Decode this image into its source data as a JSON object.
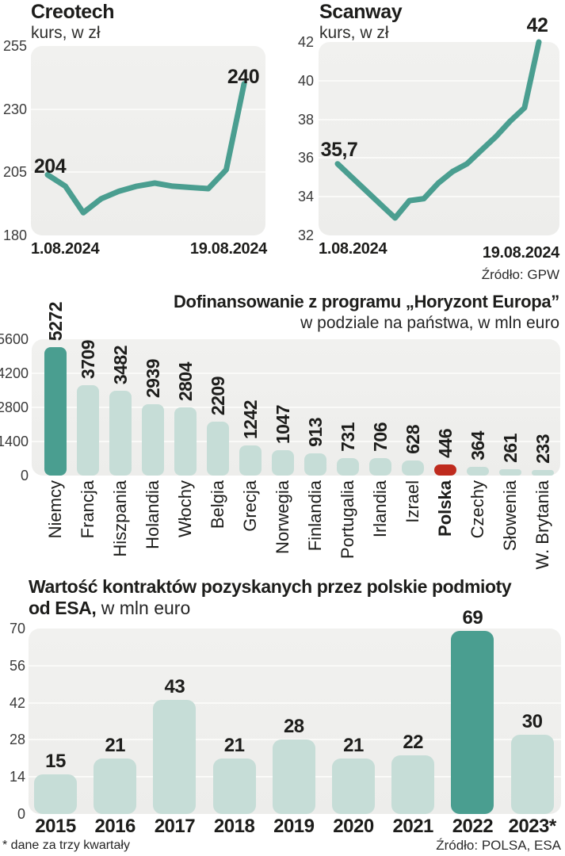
{
  "page": {
    "background": "#ffffff"
  },
  "colors": {
    "teal_dark": "#4a9e90",
    "teal_light": "#c6ddd7",
    "red": "#bf2b1e",
    "plot_bg_top": "#f1f1ef",
    "plot_bg_bottom": "#ededeb",
    "grid": "#fafaf8",
    "text_dark": "#1d1d1b",
    "tick_text": "#3a3a3a"
  },
  "sources": {
    "gpw": "Źródło: GPW",
    "polsa_esa": "Źródło: POLSA, ESA"
  },
  "footnote": "* dane za trzy kwartały",
  "chart_data": [
    {
      "id": "creotech",
      "type": "line",
      "title": "Creotech",
      "subtitle": "kurs, w zł",
      "ylim": [
        180,
        255
      ],
      "y_ticks": [
        255,
        230,
        205,
        180
      ],
      "gridlines": [
        230,
        205
      ],
      "x_tick_labels": [
        "1.08.2024",
        "19.08.2024"
      ],
      "values": [
        204,
        199.5,
        189,
        194.5,
        197.5,
        199.5,
        200.7,
        199.5,
        199,
        198.5,
        206,
        240
      ],
      "point_labels": [
        {
          "index": 0,
          "text": "204"
        },
        {
          "index": 11,
          "text": "240"
        }
      ],
      "line_color_key": "teal_dark"
    },
    {
      "id": "scanway",
      "type": "line",
      "title": "Scanway",
      "subtitle": "kurs, w zł",
      "ylim": [
        32,
        42
      ],
      "y_ticks": [
        42,
        40,
        38,
        36,
        34,
        32
      ],
      "gridlines": [
        40,
        38,
        36,
        34
      ],
      "x_tick_labels": [
        "1.08.2024",
        "19.08.2024"
      ],
      "values": [
        35.7,
        35.0,
        34.3,
        33.6,
        32.9,
        33.8,
        33.9,
        34.7,
        35.3,
        35.7,
        36.4,
        37.1,
        37.9,
        38.6,
        42
      ],
      "point_labels": [
        {
          "index": 0,
          "text": "35,7"
        },
        {
          "index": 14,
          "text": "42"
        }
      ],
      "line_color_key": "teal_dark"
    },
    {
      "id": "horyzont",
      "type": "bar",
      "title": "Dofinansowanie z programu „Horyzont Europa”",
      "subtitle": "w podziale na państwa, w mln euro",
      "ylim": [
        0,
        5600
      ],
      "y_ticks": [
        5600,
        4200,
        2800,
        1400,
        0
      ],
      "gridlines": [
        4200,
        2800,
        1400
      ],
      "categories": [
        "Niemcy",
        "Francja",
        "Hiszpania",
        "Holandia",
        "Włochy",
        "Belgia",
        "Grecja",
        "Norwegia",
        "Finlandia",
        "Portugalia",
        "Irlandia",
        "Izrael",
        "Polska",
        "Czechy",
        "Słowenia",
        "W. Brytania"
      ],
      "values": [
        5272,
        3709,
        3482,
        2939,
        2804,
        2209,
        1242,
        1047,
        913,
        731,
        706,
        628,
        446,
        364,
        261,
        233
      ],
      "rotated_labels": true,
      "bar_color_default": "teal_light",
      "bar_color_overrides": {
        "0": "teal_dark",
        "12": "red"
      },
      "bold_category_indexes": [
        12
      ]
    },
    {
      "id": "esa",
      "type": "bar",
      "title_line1": "Wartość kontraktów pozyskanych przez polskie podmioty",
      "title_line2_bold": "od ESA,",
      "title_line2_regular": " w mln euro",
      "ylim": [
        0,
        70
      ],
      "y_ticks": [
        70,
        56,
        42,
        28,
        14,
        0
      ],
      "gridlines": [
        56,
        42,
        28,
        14
      ],
      "categories": [
        "2015",
        "2016",
        "2017",
        "2018",
        "2019",
        "2020",
        "2021",
        "2022",
        "2023*"
      ],
      "values": [
        15,
        21,
        43,
        21,
        28,
        21,
        22,
        69,
        30
      ],
      "rotated_labels": false,
      "bar_color_default": "teal_light",
      "bar_color_overrides": {
        "7": "teal_dark"
      }
    }
  ]
}
